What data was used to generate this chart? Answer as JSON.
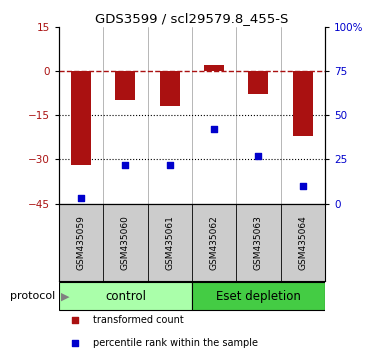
{
  "title": "GDS3599 / scl29579.8_455-S",
  "samples": [
    "GSM435059",
    "GSM435060",
    "GSM435061",
    "GSM435062",
    "GSM435063",
    "GSM435064"
  ],
  "transformed_counts": [
    -32,
    -10,
    -12,
    2,
    -8,
    -22
  ],
  "percentile_ranks": [
    3,
    22,
    22,
    42,
    27,
    10
  ],
  "left_ylim": [
    -45,
    15
  ],
  "left_yticks": [
    15,
    0,
    -15,
    -30,
    -45
  ],
  "right_ylim": [
    0,
    100
  ],
  "right_yticks": [
    100,
    75,
    50,
    25,
    0
  ],
  "right_yticklabels": [
    "100%",
    "75",
    "50",
    "25",
    "0"
  ],
  "bar_color": "#aa1111",
  "dot_color": "#0000cc",
  "hline_y": 0,
  "dotted_lines": [
    -15,
    -30
  ],
  "ctrl_color": "#aaffaa",
  "eset_color": "#44cc44",
  "label_bg": "#cccccc",
  "legend_items": [
    {
      "label": "transformed count",
      "color": "#aa1111"
    },
    {
      "label": "percentile rank within the sample",
      "color": "#0000cc"
    }
  ],
  "background_color": "#ffffff"
}
